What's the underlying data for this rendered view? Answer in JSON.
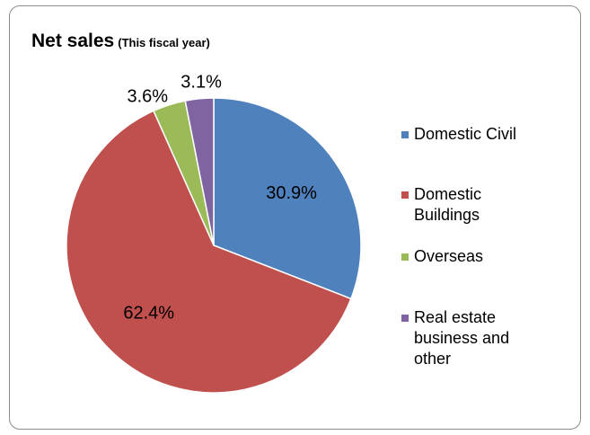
{
  "chart_data": {
    "type": "pie",
    "title": "Net sales",
    "subtitle": "(This fiscal year)",
    "start_angle_deg": 0,
    "direction": "clockwise",
    "slices": [
      {
        "label": "Domestic Civil",
        "value": 30.9,
        "display": "30.9%",
        "color": "#4f81bd"
      },
      {
        "label": "Domestic Buildings",
        "value": 62.4,
        "display": "62.4%",
        "color": "#c0504d"
      },
      {
        "label": "Overseas",
        "value": 3.6,
        "display": "3.6%",
        "color": "#9bbb59"
      },
      {
        "label": "Real estate business and other",
        "value": 3.1,
        "display": "3.1%",
        "color": "#8064a2"
      }
    ],
    "legend_position": "right",
    "grid": false
  }
}
